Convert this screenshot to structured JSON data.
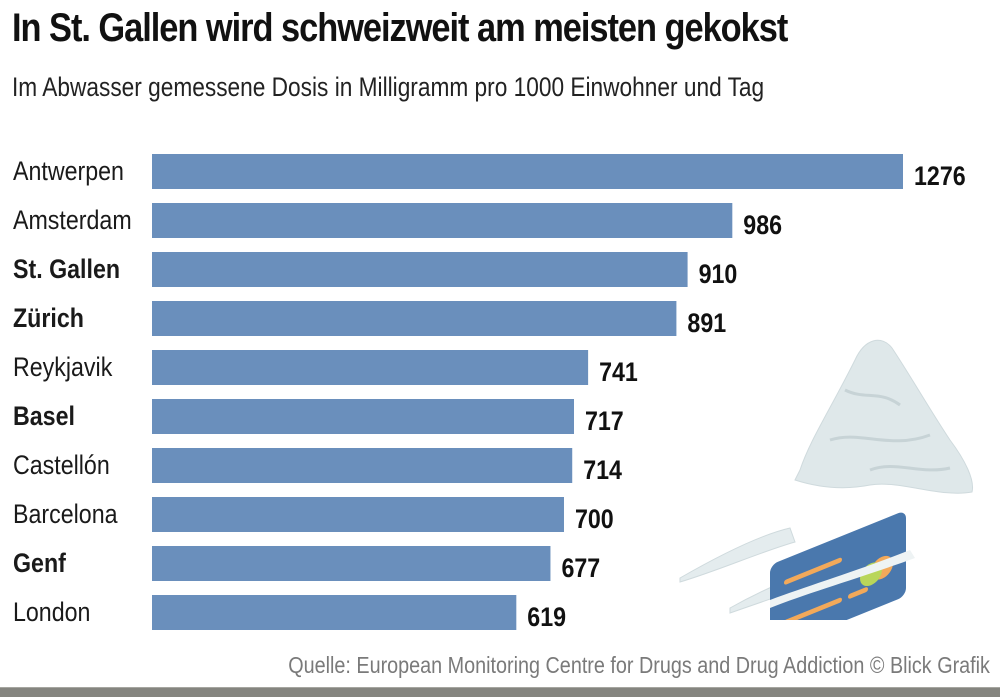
{
  "header": {
    "title": "In St. Gallen wird schweizweit am meisten gekokst",
    "subtitle": "Im Abwasser gemessene Dosis in Milligramm pro 1000 Einwohner und Tag"
  },
  "footer": {
    "source": "Quelle: European Monitoring Centre for Drugs and Drug Addiction  © Blick Grafik"
  },
  "illustration": {
    "icon": "cocaine-pile-credit-card-icon",
    "colors": {
      "snow": "#dfe8ea",
      "card": "#4a78ad",
      "stripe": "#f2a95a",
      "circle_green": "#b9d65a",
      "circle_orange": "#f2a95a"
    }
  },
  "colors": {
    "bar": "#6a8fbc",
    "label": "#1a1a1a",
    "source": "#7a7a7a",
    "strip": "#85857f"
  },
  "chart_data": {
    "type": "bar",
    "orientation": "horizontal",
    "title": "In St. Gallen wird schweizweit am meisten gekokst",
    "subtitle": "Im Abwasser gemessene Dosis in Milligramm pro 1000 Einwohner und Tag",
    "xlabel": "",
    "ylabel": "",
    "xlim": [
      0,
      1276
    ],
    "grid": false,
    "legend": "none",
    "categories": [
      "Antwerpen",
      "Amsterdam",
      "St. Gallen",
      "Zürich",
      "Reykjavik",
      "Basel",
      "Castellón",
      "Barcelona",
      "Genf",
      "London"
    ],
    "values": [
      1276,
      986,
      910,
      891,
      741,
      717,
      714,
      700,
      677,
      619
    ],
    "highlighted": [
      "St. Gallen",
      "Zürich",
      "Basel",
      "Genf"
    ],
    "source": "Quelle: European Monitoring Centre for Drugs and Drug Addiction  © Blick Grafik"
  }
}
